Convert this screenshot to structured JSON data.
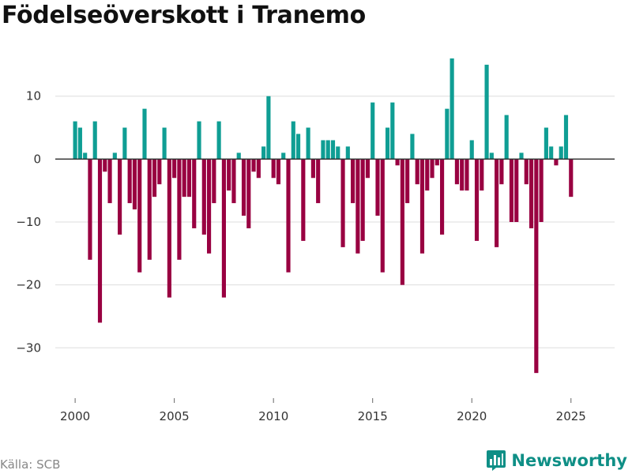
{
  "chart_data": {
    "type": "bar",
    "title": "Födelseöverskott i Tranemo",
    "xlabel": "",
    "ylabel": "",
    "x_start": 2000,
    "x_step": 0.25,
    "values": [
      6,
      5,
      1,
      -16,
      6,
      -26,
      -2,
      -7,
      1,
      -12,
      5,
      -7,
      -8,
      -18,
      8,
      -16,
      -6,
      -4,
      5,
      -22,
      -3,
      -16,
      -6,
      -6,
      -11,
      6,
      -12,
      -15,
      -7,
      6,
      -22,
      -5,
      -7,
      1,
      -9,
      -11,
      -2,
      -3,
      2,
      10,
      -3,
      -4,
      1,
      -18,
      6,
      4,
      -13,
      5,
      -3,
      -7,
      3,
      3,
      3,
      2,
      -14,
      2,
      -7,
      -15,
      -13,
      -3,
      9,
      -9,
      -18,
      5,
      9,
      -1,
      -20,
      -7,
      4,
      -4,
      -15,
      -5,
      -3,
      -1,
      -12,
      8,
      16,
      -4,
      -5,
      -5,
      3,
      -13,
      -5,
      15,
      1,
      -14,
      -4,
      7,
      -10,
      -10,
      1,
      -4,
      -11,
      -34,
      -10,
      5,
      2,
      -1,
      2,
      7,
      -6
    ],
    "xlim": [
      1999,
      2027.2
    ],
    "ylim": [
      -38,
      17.5
    ],
    "x_ticks": [
      2000,
      2005,
      2010,
      2015,
      2020,
      2025
    ],
    "x_tick_labels": [
      "2000",
      "2005",
      "2010",
      "2015",
      "2020",
      "2025"
    ],
    "y_ticks": [
      -30,
      -20,
      -10,
      0,
      10
    ],
    "y_tick_labels": [
      "−30",
      "−20",
      "−10",
      "0",
      "10"
    ],
    "grid": true,
    "colors": {
      "positive": "#0f9e94",
      "negative": "#990041",
      "grid": "#dddddd",
      "zero": "#333333"
    }
  },
  "footer": {
    "source": "Källa: SCB",
    "brand": "Newsworthy",
    "brand_color": "#0f8f86",
    "brand_icon": "bar-chart-logo-icon"
  }
}
